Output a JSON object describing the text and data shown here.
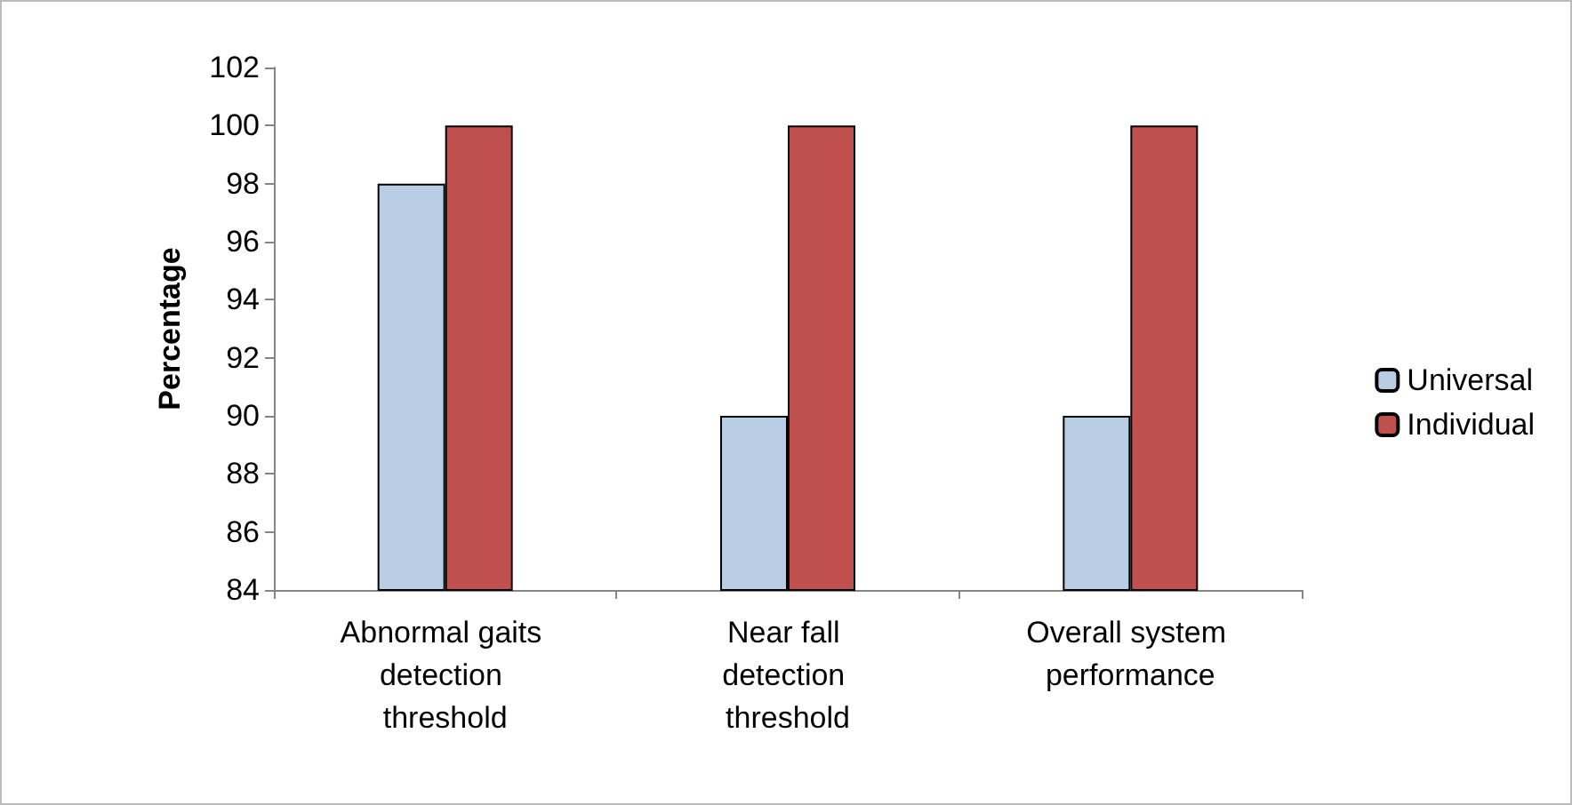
{
  "chart_data": {
    "type": "bar",
    "ylabel": "Percentage",
    "categories": [
      "Abnormal gaits detection threshold",
      "Near fall detection threshold",
      "Overall system performance"
    ],
    "series": [
      {
        "name": "Universal",
        "color": "#b9cde5",
        "values": [
          98,
          90,
          90
        ]
      },
      {
        "name": "Individual",
        "color": "#c0504d",
        "values": [
          100,
          100,
          100
        ]
      }
    ],
    "ylim": [
      84,
      102
    ],
    "yticks": [
      84,
      86,
      88,
      90,
      92,
      94,
      96,
      98,
      100,
      102
    ],
    "grid": false,
    "legend": "right"
  }
}
